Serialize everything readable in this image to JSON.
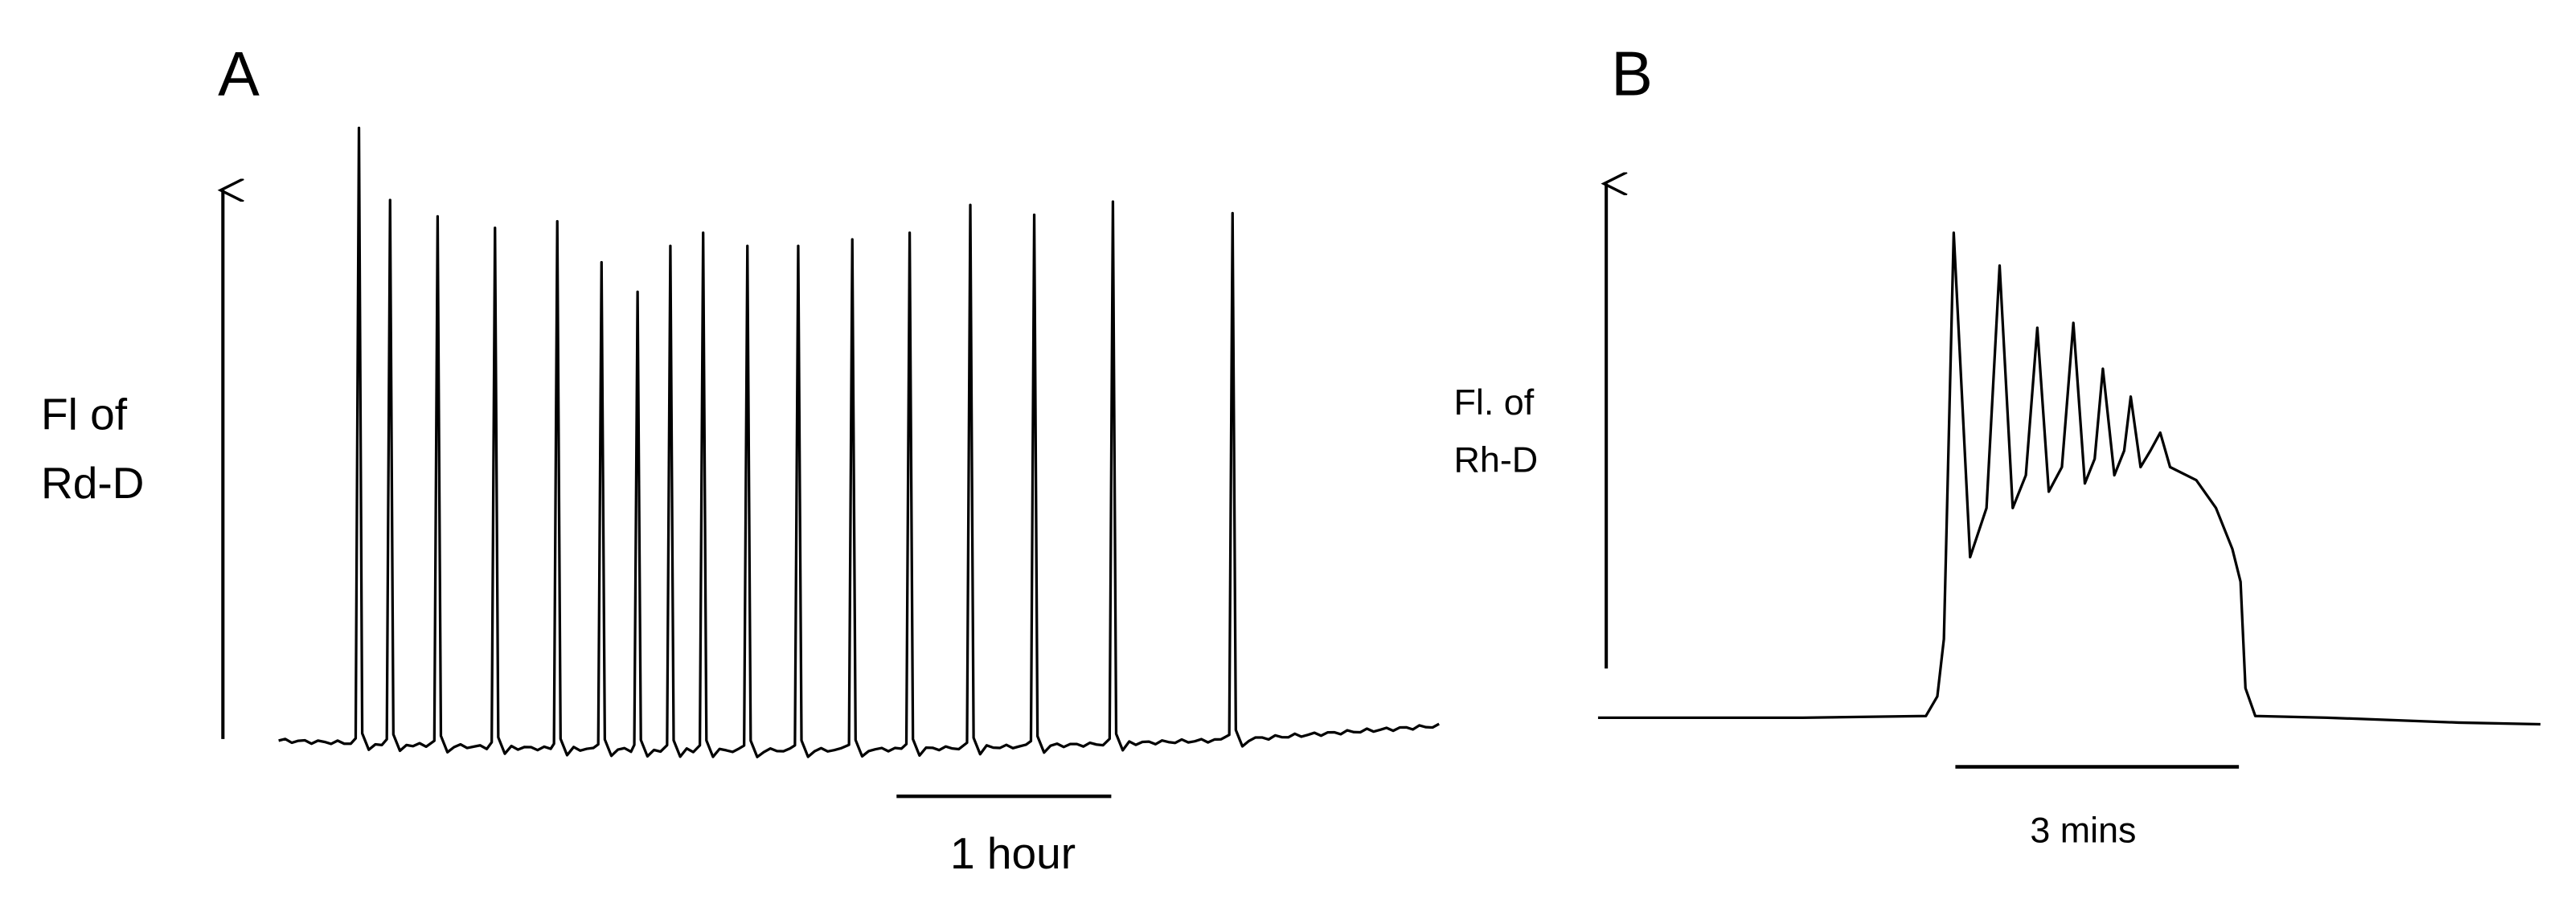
{
  "panel_a": {
    "label": "A",
    "y_label": [
      "Fl of",
      "Rd-D"
    ],
    "scale_bar": "1 hour"
  },
  "panel_b": {
    "label": "B",
    "y_label": [
      "Fl. of",
      "Rh-D"
    ],
    "scale_bar": "3 mins"
  }
}
